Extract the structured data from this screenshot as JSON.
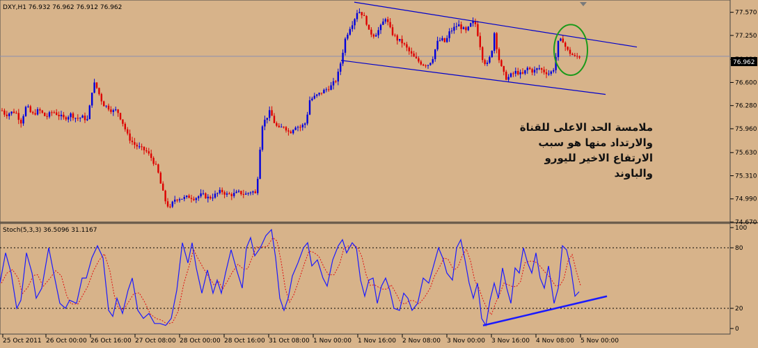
{
  "window": {
    "symbol_header": "DXY,H1  76.932 76.962 76.912 76.962",
    "stoch_header": "Stoch(5,3,3) 36.5096 31.1167",
    "current_price_label": "76.962"
  },
  "annotation": {
    "lines": [
      "ملامسة الحد الاعلى للقناة",
      "والارتداد منها هو سبب",
      "الارتفاع الاخير لليورو",
      "والباوند"
    ]
  },
  "colors": {
    "background": "#d7b38a",
    "grid": "#9b8263",
    "bull_candle": "#0000dd",
    "bear_candle": "#dd0000",
    "channel": "#0000cc",
    "stoch_main": "#1a1aff",
    "stoch_signal": "#e01010",
    "circle": "#1a9a1a"
  },
  "chart_data": [
    {
      "type": "candlestick",
      "symbol": "DXY",
      "timeframe": "H1",
      "y_ticks": [
        "77.570",
        "77.250",
        "76.920",
        "76.600",
        "76.280",
        "75.960",
        "75.630",
        "75.310",
        "74.990",
        "74.670"
      ],
      "ylim": [
        74.67,
        77.74
      ],
      "last_price": 76.962,
      "x_tick_labels": [
        "25 Oct 2011",
        "26 Oct 00:00",
        "26 Oct 16:00",
        "27 Oct 08:00",
        "28 Oct 00:00",
        "28 Oct 16:00",
        "31 Oct 08:00",
        "1 Nov 00:00",
        "1 Nov 16:00",
        "2 Nov 08:00",
        "3 Nov 00:00",
        "3 Nov 16:00",
        "4 Nov 08:00",
        "5 Nov 00:00"
      ],
      "close_path": [
        [
          0,
          76.25
        ],
        [
          8,
          76.15
        ],
        [
          14,
          76.18
        ],
        [
          22,
          76.2
        ],
        [
          30,
          76.05
        ],
        [
          38,
          76.28
        ],
        [
          46,
          76.15
        ],
        [
          56,
          76.22
        ],
        [
          66,
          76.12
        ],
        [
          76,
          76.2
        ],
        [
          84,
          76.15
        ],
        [
          92,
          76.1
        ],
        [
          102,
          76.16
        ],
        [
          110,
          76.1
        ],
        [
          118,
          76.12
        ],
        [
          126,
          76.08
        ],
        [
          134,
          76.6
        ],
        [
          138,
          76.55
        ],
        [
          142,
          76.45
        ],
        [
          148,
          76.3
        ],
        [
          156,
          76.25
        ],
        [
          162,
          76.2
        ],
        [
          168,
          76.22
        ],
        [
          176,
          76.05
        ],
        [
          184,
          75.85
        ],
        [
          192,
          75.75
        ],
        [
          200,
          75.7
        ],
        [
          210,
          75.65
        ],
        [
          218,
          75.55
        ],
        [
          226,
          75.4
        ],
        [
          232,
          75.15
        ],
        [
          238,
          74.95
        ],
        [
          244,
          74.85
        ],
        [
          250,
          74.98
        ],
        [
          256,
          75.0
        ],
        [
          264,
          75.0
        ],
        [
          272,
          75.02
        ],
        [
          280,
          75.0
        ],
        [
          290,
          75.05
        ],
        [
          300,
          75.0
        ],
        [
          310,
          75.05
        ],
        [
          318,
          75.1
        ],
        [
          326,
          75.05
        ],
        [
          334,
          75.05
        ],
        [
          344,
          75.08
        ],
        [
          352,
          75.05
        ],
        [
          362,
          75.1
        ],
        [
          368,
          75.05
        ],
        [
          372,
          75.5
        ],
        [
          376,
          76.0
        ],
        [
          382,
          76.1
        ],
        [
          388,
          76.2
        ],
        [
          394,
          76.05
        ],
        [
          400,
          75.95
        ],
        [
          408,
          76.0
        ],
        [
          416,
          75.9
        ],
        [
          424,
          76.0
        ],
        [
          432,
          75.98
        ],
        [
          440,
          76.05
        ],
        [
          444,
          76.35
        ],
        [
          452,
          76.4
        ],
        [
          460,
          76.45
        ],
        [
          468,
          76.5
        ],
        [
          476,
          76.55
        ],
        [
          484,
          76.65
        ],
        [
          490,
          76.9
        ],
        [
          496,
          77.2
        ],
        [
          502,
          77.35
        ],
        [
          508,
          77.45
        ],
        [
          514,
          77.6
        ],
        [
          520,
          77.55
        ],
        [
          526,
          77.45
        ],
        [
          530,
          77.3
        ],
        [
          538,
          77.25
        ],
        [
          546,
          77.35
        ],
        [
          554,
          77.5
        ],
        [
          562,
          77.3
        ],
        [
          570,
          77.2
        ],
        [
          578,
          77.15
        ],
        [
          586,
          77.05
        ],
        [
          594,
          76.95
        ],
        [
          600,
          76.9
        ],
        [
          608,
          76.85
        ],
        [
          616,
          76.85
        ],
        [
          622,
          76.95
        ],
        [
          628,
          77.15
        ],
        [
          634,
          77.2
        ],
        [
          640,
          77.15
        ],
        [
          646,
          77.3
        ],
        [
          652,
          77.35
        ],
        [
          658,
          77.4
        ],
        [
          664,
          77.35
        ],
        [
          670,
          77.3
        ],
        [
          676,
          77.4
        ],
        [
          682,
          77.45
        ],
        [
          688,
          77.2
        ],
        [
          694,
          76.9
        ],
        [
          700,
          76.85
        ],
        [
          706,
          77.0
        ],
        [
          710,
          77.3
        ],
        [
          716,
          76.95
        ],
        [
          722,
          76.75
        ],
        [
          728,
          76.65
        ],
        [
          734,
          76.7
        ],
        [
          742,
          76.75
        ],
        [
          750,
          76.7
        ],
        [
          758,
          76.8
        ],
        [
          766,
          76.75
        ],
        [
          774,
          76.8
        ],
        [
          782,
          76.75
        ],
        [
          790,
          76.72
        ],
        [
          796,
          76.8
        ],
        [
          802,
          77.15
        ],
        [
          808,
          77.2
        ],
        [
          814,
          77.05
        ],
        [
          820,
          77.0
        ],
        [
          826,
          76.95
        ],
        [
          832,
          76.96
        ]
      ],
      "channel_lines": [
        {
          "name": "upper",
          "x1": 509,
          "y1": 77.71,
          "x2": 915,
          "y2": 77.09
        },
        {
          "name": "lower",
          "x1": 490,
          "y1": 76.905,
          "x2": 870,
          "y2": 76.435
        }
      ],
      "circle_highlight": {
        "cx": 820,
        "cy": 77.05,
        "rx": 24,
        "ry": 0.35
      }
    },
    {
      "type": "line",
      "title": "Stoch(5,3,3) 36.5096 31.1167",
      "main_value": 36.5096,
      "signal_value": 31.1167,
      "ylim": [
        0,
        100
      ],
      "y_ticks": [
        "100",
        "80",
        "20",
        "0"
      ],
      "levels": [
        80,
        20
      ],
      "pivots": [
        [
          0,
          45
        ],
        [
          8,
          75
        ],
        [
          16,
          55
        ],
        [
          24,
          20
        ],
        [
          30,
          28
        ],
        [
          38,
          75
        ],
        [
          46,
          55
        ],
        [
          52,
          30
        ],
        [
          60,
          40
        ],
        [
          70,
          80
        ],
        [
          78,
          52
        ],
        [
          86,
          25
        ],
        [
          94,
          20
        ],
        [
          100,
          28
        ],
        [
          110,
          25
        ],
        [
          118,
          50
        ],
        [
          124,
          50
        ],
        [
          132,
          70
        ],
        [
          140,
          82
        ],
        [
          148,
          70
        ],
        [
          156,
          18
        ],
        [
          162,
          12
        ],
        [
          168,
          30
        ],
        [
          176,
          15
        ],
        [
          184,
          38
        ],
        [
          190,
          50
        ],
        [
          198,
          18
        ],
        [
          206,
          10
        ],
        [
          214,
          15
        ],
        [
          222,
          5
        ],
        [
          230,
          5
        ],
        [
          238,
          3
        ],
        [
          246,
          10
        ],
        [
          254,
          38
        ],
        [
          262,
          85
        ],
        [
          270,
          65
        ],
        [
          276,
          85
        ],
        [
          282,
          60
        ],
        [
          290,
          35
        ],
        [
          298,
          58
        ],
        [
          306,
          35
        ],
        [
          312,
          48
        ],
        [
          318,
          35
        ],
        [
          324,
          55
        ],
        [
          332,
          78
        ],
        [
          340,
          58
        ],
        [
          348,
          40
        ],
        [
          354,
          80
        ],
        [
          360,
          90
        ],
        [
          366,
          72
        ],
        [
          374,
          80
        ],
        [
          382,
          92
        ],
        [
          390,
          98
        ],
        [
          396,
          70
        ],
        [
          402,
          30
        ],
        [
          408,
          18
        ],
        [
          414,
          30
        ],
        [
          420,
          52
        ],
        [
          428,
          65
        ],
        [
          436,
          80
        ],
        [
          442,
          85
        ],
        [
          448,
          62
        ],
        [
          456,
          68
        ],
        [
          464,
          50
        ],
        [
          470,
          42
        ],
        [
          478,
          68
        ],
        [
          486,
          82
        ],
        [
          492,
          88
        ],
        [
          498,
          75
        ],
        [
          506,
          85
        ],
        [
          512,
          80
        ],
        [
          518,
          48
        ],
        [
          524,
          32
        ],
        [
          530,
          48
        ],
        [
          536,
          50
        ],
        [
          542,
          25
        ],
        [
          548,
          42
        ],
        [
          554,
          50
        ],
        [
          560,
          38
        ],
        [
          566,
          20
        ],
        [
          574,
          18
        ],
        [
          580,
          35
        ],
        [
          586,
          30
        ],
        [
          592,
          18
        ],
        [
          600,
          25
        ],
        [
          608,
          50
        ],
        [
          616,
          45
        ],
        [
          622,
          60
        ],
        [
          630,
          80
        ],
        [
          636,
          70
        ],
        [
          642,
          55
        ],
        [
          650,
          48
        ],
        [
          656,
          80
        ],
        [
          662,
          88
        ],
        [
          668,
          68
        ],
        [
          674,
          45
        ],
        [
          680,
          30
        ],
        [
          686,
          45
        ],
        [
          692,
          10
        ],
        [
          698,
          3
        ],
        [
          704,
          28
        ],
        [
          710,
          45
        ],
        [
          716,
          30
        ],
        [
          722,
          60
        ],
        [
          728,
          40
        ],
        [
          734,
          25
        ],
        [
          740,
          60
        ],
        [
          746,
          55
        ],
        [
          752,
          80
        ],
        [
          758,
          65
        ],
        [
          764,
          55
        ],
        [
          770,
          75
        ],
        [
          776,
          50
        ],
        [
          782,
          40
        ],
        [
          788,
          62
        ],
        [
          796,
          25
        ],
        [
          802,
          40
        ],
        [
          808,
          82
        ],
        [
          814,
          78
        ],
        [
          820,
          60
        ],
        [
          826,
          32
        ],
        [
          832,
          36.5
        ]
      ],
      "divergence_line": {
        "x1": 694,
        "y1": 3,
        "x2": 872,
        "y2": 32
      }
    }
  ]
}
